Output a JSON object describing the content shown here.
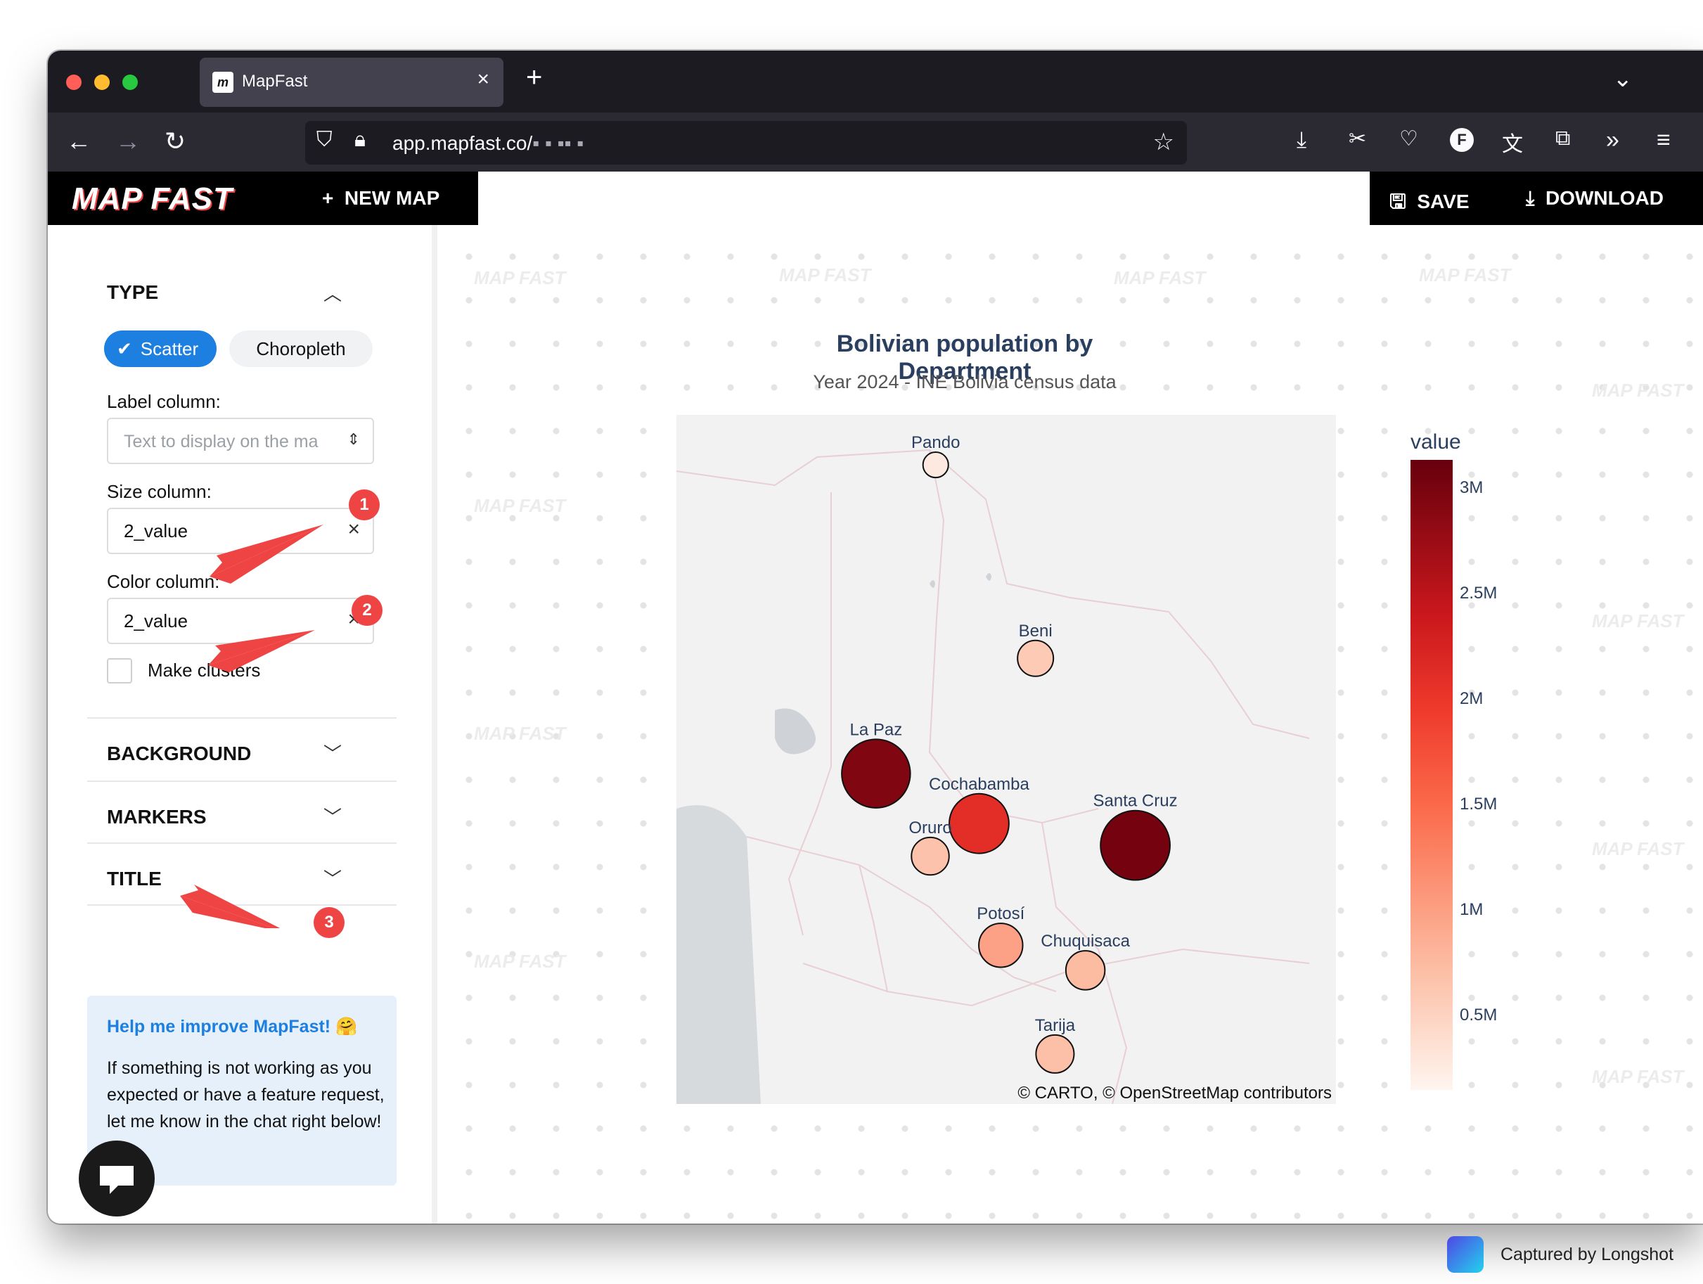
{
  "browser": {
    "tab_title": "MapFast",
    "tab_favicon": "m",
    "url_domain": "app.mapfast.co/",
    "url_path_redacted": "▪ ▪ ▪▪ ▪"
  },
  "app": {
    "logo": "MAP FAST",
    "new_map_label": "NEW MAP",
    "save_label": "SAVE",
    "download_label": "DOWNLOAD"
  },
  "sidebar": {
    "type": {
      "heading": "TYPE",
      "scatter_label": "Scatter",
      "choropleth_label": "Choropleth",
      "label_column": {
        "label": "Label column:",
        "placeholder": "Text to display on the ma"
      },
      "size_column": {
        "label": "Size column:",
        "value": "2_value"
      },
      "color_column": {
        "label": "Color column:",
        "value": "2_value"
      },
      "clusters_label": "Make clusters"
    },
    "sections": [
      "BACKGROUND",
      "MARKERS",
      "TITLE"
    ],
    "help": {
      "title": "Help me improve MapFast! 🤗",
      "body": "If something is not working as you expected or have a feature request, let me know in the chat right below!"
    }
  },
  "annotations": [
    "1",
    "2",
    "3"
  ],
  "watermark_text": "MAP FAST",
  "map": {
    "title": "Bolivian population by Department",
    "subtitle": "Year 2024 - INE Bolivia census data",
    "credit": "© CARTO, © OpenStreetMap contributors",
    "colorbar_title": "value",
    "colorbar_ticks": [
      "3M",
      "2.5M",
      "2M",
      "1.5M",
      "1M",
      "0.5M"
    ],
    "colors": {
      "low": "#fff5f0",
      "mid": "#ef3b2c",
      "high": "#67000d"
    }
  },
  "chart_data": {
    "type": "scatter",
    "title": "Bolivian population by Department",
    "subtitle": "Year 2024 - INE Bolivia census data",
    "color_label": "value",
    "points": [
      {
        "name": "Pando",
        "value": 130000
      },
      {
        "name": "Beni",
        "value": 480000
      },
      {
        "name": "La Paz",
        "value": 3000000
      },
      {
        "name": "Cochabamba",
        "value": 2100000
      },
      {
        "name": "Oruro",
        "value": 560000
      },
      {
        "name": "Santa Cruz",
        "value": 3100000
      },
      {
        "name": "Potosí",
        "value": 900000
      },
      {
        "name": "Chuquisaca",
        "value": 630000
      },
      {
        "name": "Tarija",
        "value": 580000
      }
    ]
  },
  "footer": {
    "capture_label": "Captured by Longshot"
  }
}
